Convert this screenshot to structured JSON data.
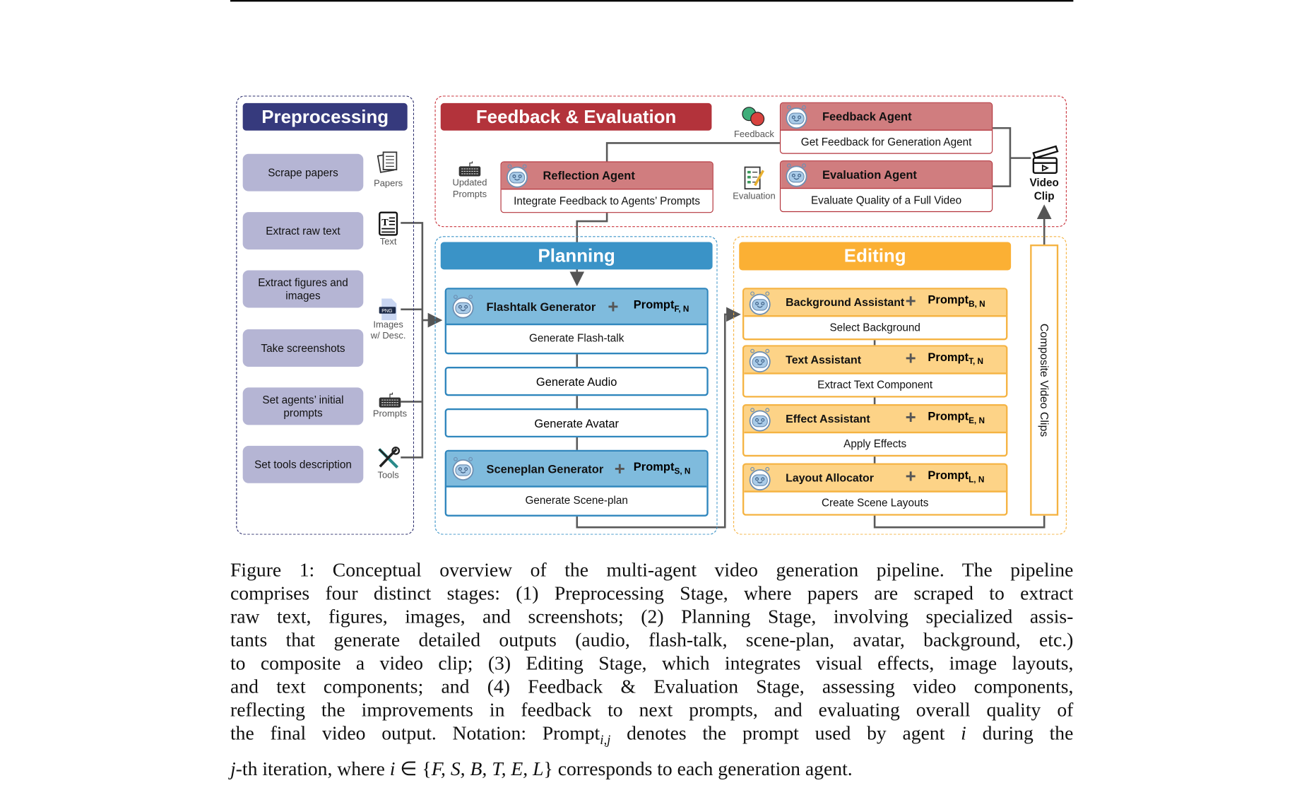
{
  "preprocessing": {
    "title": "Preprocessing",
    "items": [
      "Scrape papers",
      "Extract raw text",
      "Extract figures and images",
      "Take screenshots",
      "Set agents’ initial prompts",
      "Set tools description"
    ],
    "icon_labels": {
      "papers": "Papers",
      "text": "Text",
      "images": "Images",
      "images2": "w/ Desc.",
      "prompts": "Prompts",
      "tools": "Tools"
    }
  },
  "feedback": {
    "title": "Feedback & Evaluation",
    "updated1": "Updated",
    "updated2": "Prompts",
    "feedback_label": "Feedback",
    "evaluation_label": "Evaluation",
    "reflection": {
      "name": "Reflection Agent",
      "task": "Integrate Feedback to Agents’ Prompts"
    },
    "feedback_agent": {
      "name": "Feedback Agent",
      "task": "Get Feedback for Generation Agent"
    },
    "evaluation_agent": {
      "name": "Evaluation Agent",
      "task": "Evaluate Quality of a Full Video"
    },
    "video1": "Video",
    "video2": "Clip"
  },
  "planning": {
    "title": "Planning",
    "flashtalk": {
      "name": "Flashtalk Generator",
      "prompt": "Prompt",
      "sub": "F, N",
      "task": "Generate Flash-talk"
    },
    "audio": "Generate Audio",
    "avatar": "Generate Avatar",
    "sceneplan": {
      "name": "Sceneplan Generator",
      "prompt": "Prompt",
      "sub": "S, N",
      "task": "Generate Scene-plan"
    }
  },
  "editing": {
    "title": "Editing",
    "composite": "Composite Video Clips",
    "agents": [
      {
        "name": "Background Assistant",
        "prompt": "Prompt",
        "sub": "B, N",
        "task": "Select Background"
      },
      {
        "name": "Text Assistant",
        "prompt": "Prompt",
        "sub": "T, N",
        "task": "Extract Text Component"
      },
      {
        "name": "Effect Assistant",
        "prompt": "Prompt",
        "sub": "E, N",
        "task": "Apply Effects"
      },
      {
        "name": "Layout Allocator",
        "prompt": "Prompt",
        "sub": "L, N",
        "task": "Create Scene Layouts"
      }
    ]
  },
  "caption": {
    "lines": [
      "Figure 1: Conceptual overview of the multi-agent video generation pipeline. The pipeline",
      "comprises four distinct stages: (1) Preprocessing Stage, where papers are scraped to extract",
      "raw text, figures, images, and screenshots; (2) Planning Stage, involving specialized assis-",
      "tants that generate detailed outputs (audio, flash-talk, scene-plan, avatar, background, etc.)",
      "to composite a video clip; (3) Editing Stage, which integrates visual effects, image layouts,",
      "and text components; and (4) Feedback & Evaluation Stage, assessing video components,",
      "reflecting the improvements in feedback to next prompts, and evaluating overall quality of"
    ],
    "l8a": "the final video output. Notation: Prompt",
    "l8sub": "i,j",
    "l8b": " denotes the prompt used by agent ",
    "l8i": "i",
    "l8c": " during the",
    "l9a": "j",
    "l9b": "-th iteration, where ",
    "l9c": "i",
    "l9d": " ∈ {",
    "l9e": "F, S, B, T, E, L",
    "l9f": "} corresponds to each generation agent."
  },
  "colors": {
    "preprocessing": "#363a7d",
    "feedback": "#b3333b",
    "planning": "#3a93c7",
    "editing": "#fbb034"
  }
}
